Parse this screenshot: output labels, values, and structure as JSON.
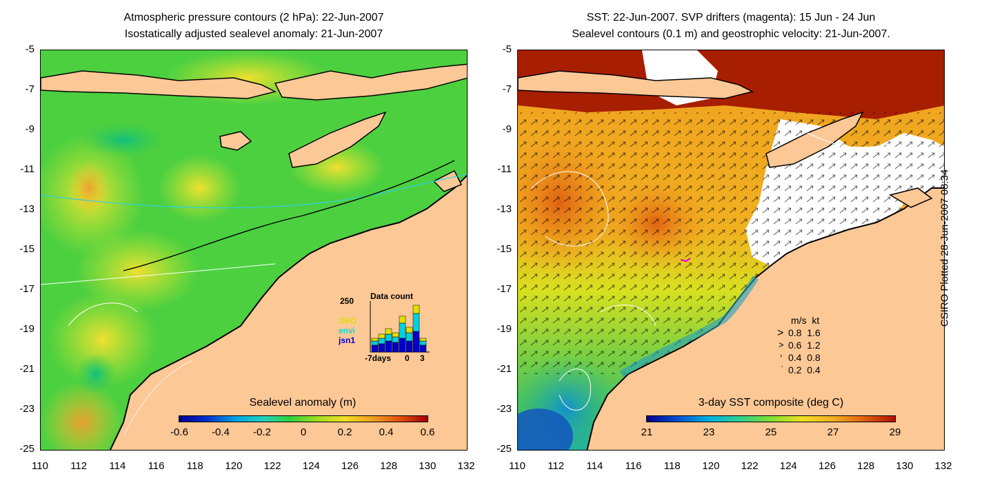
{
  "left_panel": {
    "title_line1": "Atmospheric pressure contours (2 hPa): 22-Jun-2007",
    "title_line2": "Isostatically adjusted sealevel anomaly: 21-Jun-2007",
    "y_ticks": [
      "-5",
      "-7",
      "-9",
      "-11",
      "-13",
      "-15",
      "-17",
      "-19",
      "-21",
      "-23",
      "-25"
    ],
    "x_ticks": [
      "110",
      "112",
      "114",
      "116",
      "118",
      "120",
      "122",
      "124",
      "126",
      "128",
      "130",
      "132"
    ],
    "colorbar": {
      "title": "Sealevel anomaly (m)",
      "labels": [
        "-0.6",
        "-0.4",
        "-0.2",
        "0",
        "0.2",
        "0.4",
        "0.6"
      ]
    },
    "inset": {
      "title": "Data count",
      "ymax_label": "250",
      "x_labels": [
        "-7days",
        "0",
        "3"
      ],
      "satellites": [
        {
          "name": "GFO",
          "color": "#e0e000"
        },
        {
          "name": "envi",
          "color": "#00e0e0"
        },
        {
          "name": "jsn1",
          "color": "#0000cc"
        }
      ]
    }
  },
  "right_panel": {
    "title_line1": "SST: 22-Jun-2007. SVP drifters (magenta): 15 Jun - 24 Jun",
    "title_line2": "Sealevel contours (0.1 m) and geostrophic velocity: 21-Jun-2007.",
    "y_ticks": [
      "-5",
      "-7",
      "-9",
      "-11",
      "-13",
      "-15",
      "-17",
      "-19",
      "-21",
      "-23",
      "-25"
    ],
    "x_ticks": [
      "110",
      "112",
      "114",
      "116",
      "118",
      "120",
      "122",
      "124",
      "126",
      "128",
      "130",
      "132"
    ],
    "colorbar": {
      "title": "3-day SST composite (deg C)",
      "labels": [
        "21",
        "23",
        "25",
        "27",
        "29"
      ]
    },
    "velocity_legend": {
      "header": "m/s  kt",
      "rows": [
        "0.8  1.6",
        "0.6  1.2",
        "0.4  0.8",
        "0.2  0.4"
      ]
    }
  },
  "credit": "CSIRO Plotted 28-Jun-2007 08:34",
  "colors": {
    "land": "#fcc896",
    "coast": "#000000",
    "cloud": "#ffffff",
    "warm": "#a81e00"
  }
}
